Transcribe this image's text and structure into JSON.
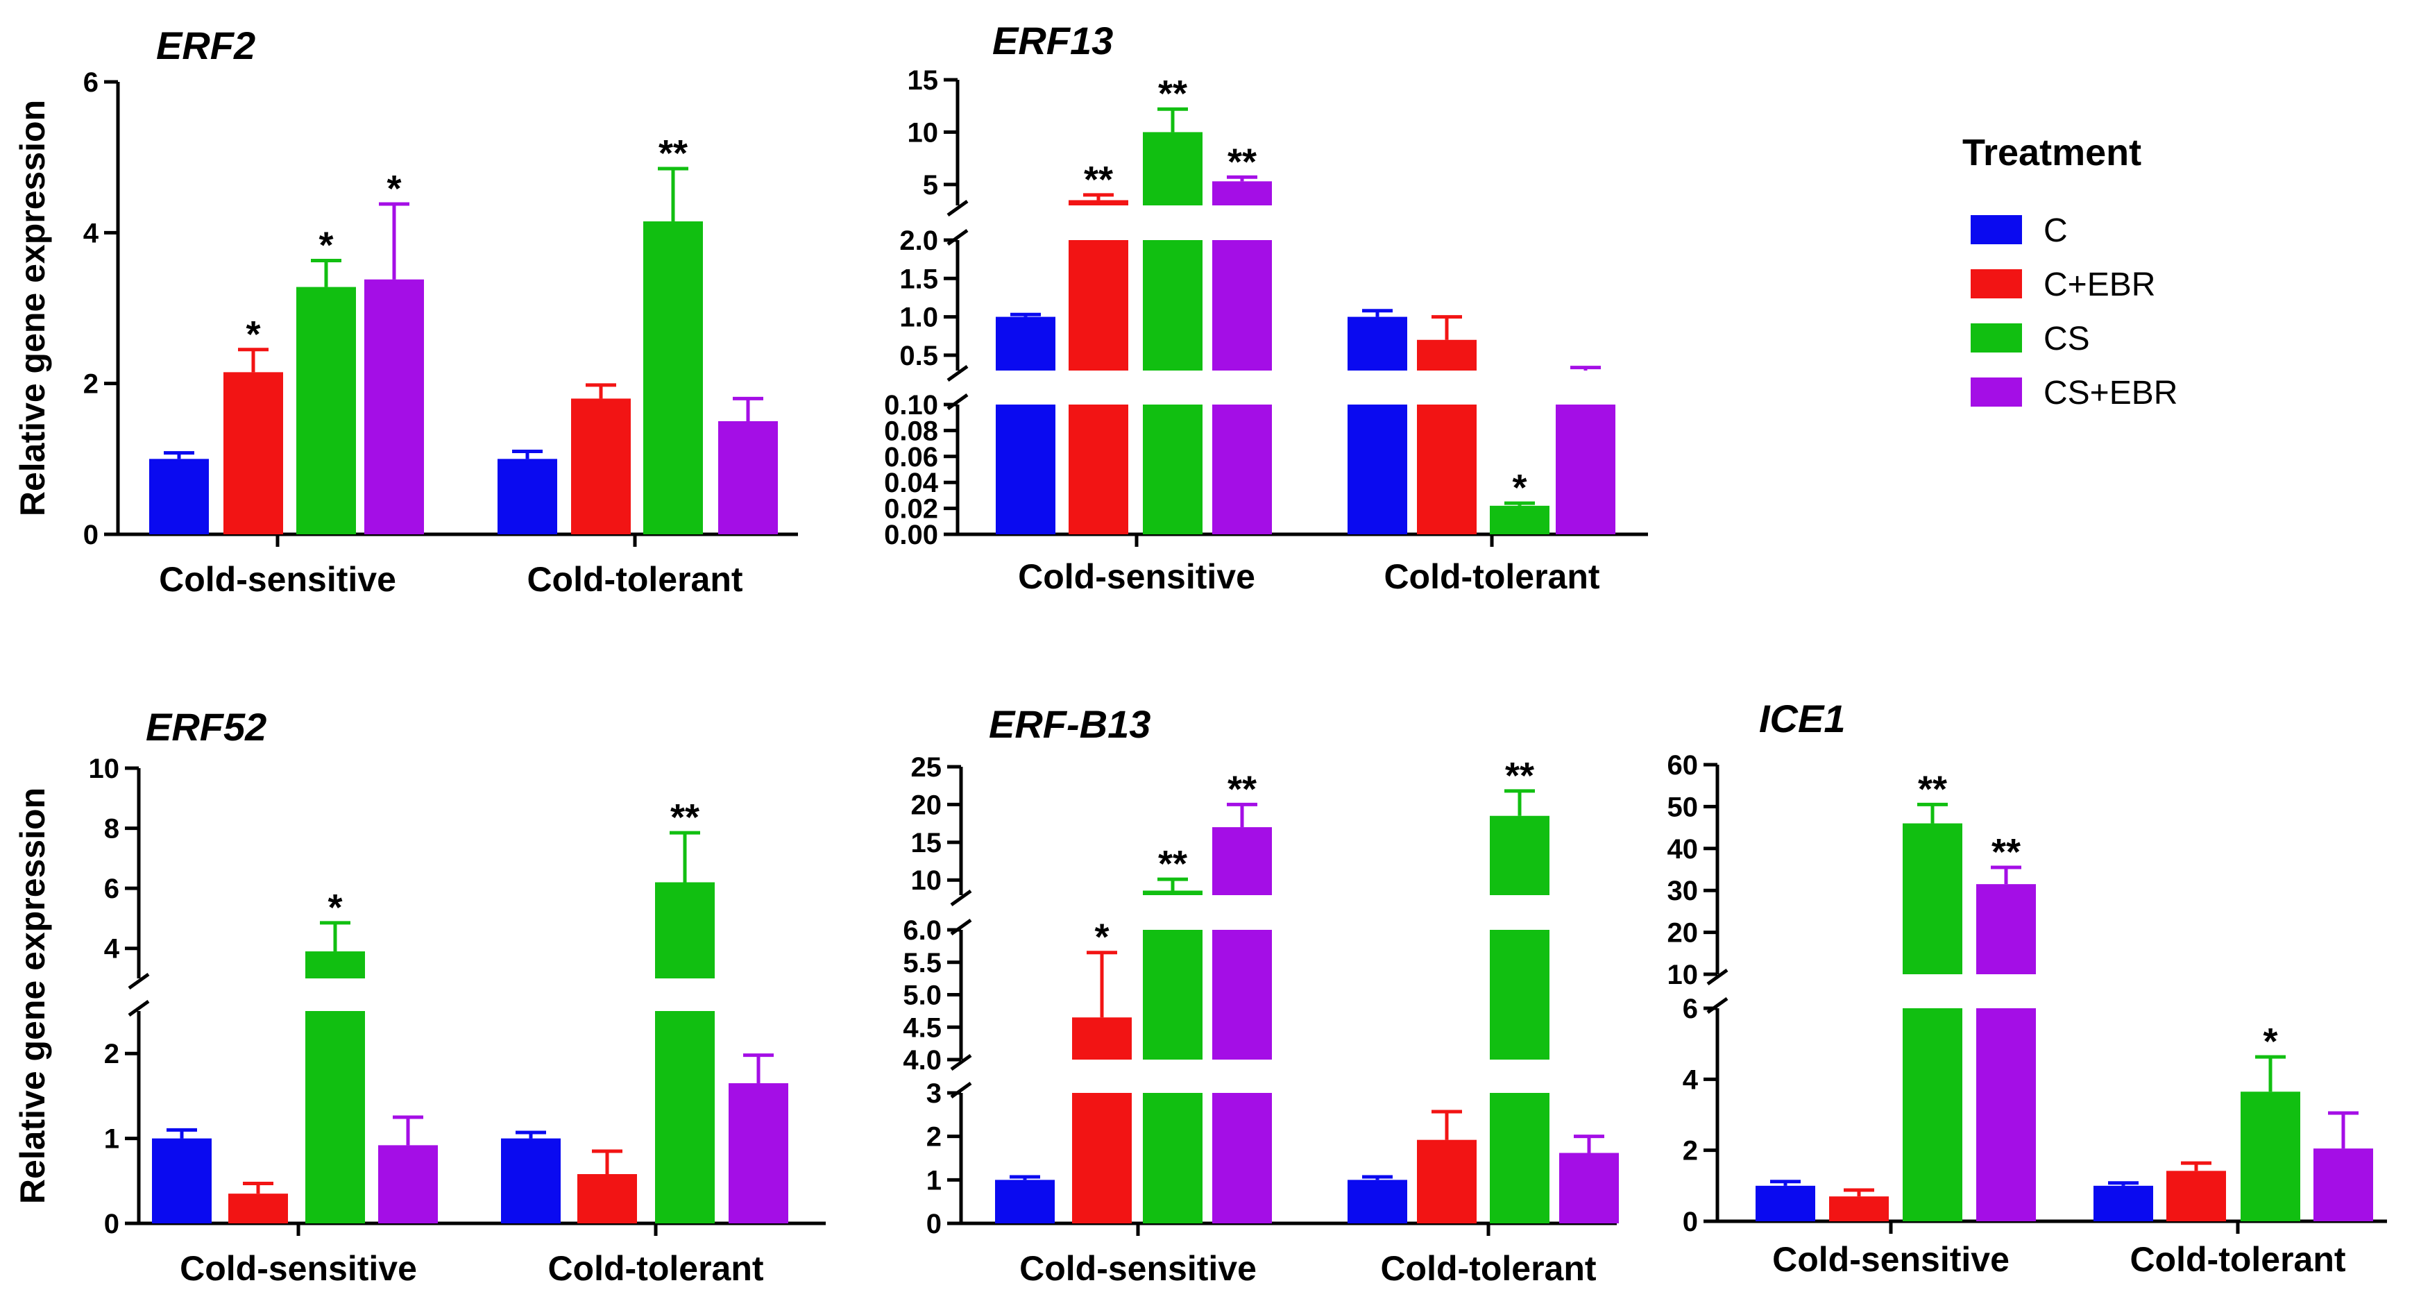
{
  "legend": {
    "title": "Treatment",
    "items": [
      {
        "label": "C",
        "color": "#0a0af0"
      },
      {
        "label": "C+EBR",
        "color": "#f21414"
      },
      {
        "label": "CS",
        "color": "#11bf11"
      },
      {
        "label": "CS+EBR",
        "color": "#a40ee6"
      }
    ]
  },
  "ylabel": "Relative gene expression",
  "categories": [
    "Cold-sensitive",
    "Cold-tolerant"
  ],
  "chart_data": [
    {
      "type": "bar",
      "title": "ERF2",
      "categories": [
        "Cold-sensitive",
        "Cold-tolerant"
      ],
      "series": [
        {
          "name": "C",
          "values": [
            1.0,
            1.0
          ],
          "errors": [
            0.08,
            0.1
          ],
          "sig": [
            "",
            ""
          ]
        },
        {
          "name": "C+EBR",
          "values": [
            2.15,
            1.8
          ],
          "errors": [
            0.3,
            0.18
          ],
          "sig": [
            "*",
            ""
          ]
        },
        {
          "name": "CS",
          "values": [
            3.28,
            4.15
          ],
          "errors": [
            0.35,
            0.7
          ],
          "sig": [
            "*",
            "**"
          ]
        },
        {
          "name": "CS+EBR",
          "values": [
            3.38,
            1.5
          ],
          "errors": [
            1.0,
            0.3
          ],
          "sig": [
            "*",
            ""
          ]
        }
      ],
      "ylim": [
        0,
        6
      ],
      "yticks": [
        "0",
        "2",
        "4",
        "6"
      ]
    },
    {
      "type": "bar",
      "title": "ERF13",
      "broken_axis": true,
      "categories": [
        "Cold-sensitive",
        "Cold-tolerant"
      ],
      "series": [
        {
          "name": "C",
          "values": [
            1.0,
            1.0
          ],
          "errors": [
            0.03,
            0.08
          ],
          "sig": [
            "",
            ""
          ]
        },
        {
          "name": "C+EBR",
          "values": [
            3.5,
            0.7
          ],
          "errors": [
            0.5,
            0.3
          ],
          "sig": [
            "**",
            ""
          ]
        },
        {
          "name": "CS",
          "values": [
            10.0,
            0.022
          ],
          "errors": [
            2.2,
            0.002
          ],
          "sig": [
            "**",
            "*"
          ]
        },
        {
          "name": "CS+EBR",
          "values": [
            5.3,
            0.3
          ],
          "errors": [
            0.4,
            0.04
          ],
          "sig": [
            "**",
            ""
          ]
        }
      ],
      "segments": [
        {
          "range": [
            0,
            0.1
          ],
          "yticks": [
            "0.00",
            "0.02",
            "0.04",
            "0.06",
            "0.08",
            "0.10"
          ]
        },
        {
          "range": [
            0.3,
            2.0
          ],
          "yticks": [
            "0.5",
            "1.0",
            "1.5",
            "2.0"
          ]
        },
        {
          "range": [
            3.0,
            15
          ],
          "yticks": [
            "5",
            "10",
            "15"
          ]
        }
      ]
    },
    {
      "type": "bar",
      "title": "ERF52",
      "broken_axis": true,
      "categories": [
        "Cold-sensitive",
        "Cold-tolerant"
      ],
      "series": [
        {
          "name": "C",
          "values": [
            1.0,
            1.0
          ],
          "errors": [
            0.1,
            0.07
          ],
          "sig": [
            "",
            ""
          ]
        },
        {
          "name": "C+EBR",
          "values": [
            0.35,
            0.58
          ],
          "errors": [
            0.12,
            0.27
          ],
          "sig": [
            "",
            ""
          ]
        },
        {
          "name": "CS",
          "values": [
            3.9,
            6.2
          ],
          "errors": [
            0.95,
            1.65
          ],
          "sig": [
            "*",
            "**"
          ]
        },
        {
          "name": "CS+EBR",
          "values": [
            0.92,
            1.65
          ],
          "errors": [
            0.33,
            0.33
          ],
          "sig": [
            "",
            ""
          ]
        }
      ],
      "segments": [
        {
          "range": [
            0,
            2.5
          ],
          "yticks": [
            "0",
            "1",
            "2"
          ]
        },
        {
          "range": [
            3.0,
            10
          ],
          "yticks": [
            "4",
            "6",
            "8",
            "10"
          ]
        }
      ]
    },
    {
      "type": "bar",
      "title": "ERF-B13",
      "broken_axis": true,
      "categories": [
        "Cold-sensitive",
        "Cold-tolerant"
      ],
      "series": [
        {
          "name": "C",
          "values": [
            1.0,
            1.0
          ],
          "errors": [
            0.07,
            0.07
          ],
          "sig": [
            "",
            ""
          ]
        },
        {
          "name": "C+EBR",
          "values": [
            4.65,
            1.92
          ],
          "errors": [
            1.0,
            0.65
          ],
          "sig": [
            "*",
            ""
          ]
        },
        {
          "name": "CS",
          "values": [
            8.6,
            18.5
          ],
          "errors": [
            1.5,
            3.3
          ],
          "sig": [
            "**",
            "**"
          ]
        },
        {
          "name": "CS+EBR",
          "values": [
            17.0,
            1.62
          ],
          "errors": [
            3.0,
            0.38
          ],
          "sig": [
            "**",
            ""
          ]
        }
      ],
      "segments": [
        {
          "range": [
            0,
            3
          ],
          "yticks": [
            "0",
            "1",
            "2",
            "3"
          ]
        },
        {
          "range": [
            4.0,
            6.0
          ],
          "yticks": [
            "4.0",
            "4.5",
            "5.0",
            "5.5",
            "6.0"
          ]
        },
        {
          "range": [
            8,
            25
          ],
          "yticks": [
            "10",
            "15",
            "20",
            "25"
          ]
        }
      ]
    },
    {
      "type": "bar",
      "title": "ICE1",
      "broken_axis": true,
      "categories": [
        "Cold-sensitive",
        "Cold-tolerant"
      ],
      "series": [
        {
          "name": "C",
          "values": [
            1.0,
            1.0
          ],
          "errors": [
            0.12,
            0.08
          ],
          "sig": [
            "",
            ""
          ]
        },
        {
          "name": "C+EBR",
          "values": [
            0.7,
            1.42
          ],
          "errors": [
            0.18,
            0.22
          ],
          "sig": [
            "",
            ""
          ]
        },
        {
          "name": "CS",
          "values": [
            46,
            3.65
          ],
          "errors": [
            4.5,
            0.98
          ],
          "sig": [
            "**",
            "*"
          ]
        },
        {
          "name": "CS+EBR",
          "values": [
            31.5,
            2.05
          ],
          "errors": [
            4.0,
            1.0
          ],
          "sig": [
            "**",
            ""
          ]
        }
      ],
      "segments": [
        {
          "range": [
            0,
            6
          ],
          "yticks": [
            "0",
            "2",
            "4",
            "6"
          ]
        },
        {
          "range": [
            10,
            60
          ],
          "yticks": [
            "10",
            "20",
            "30",
            "40",
            "50",
            "60"
          ]
        }
      ]
    }
  ]
}
